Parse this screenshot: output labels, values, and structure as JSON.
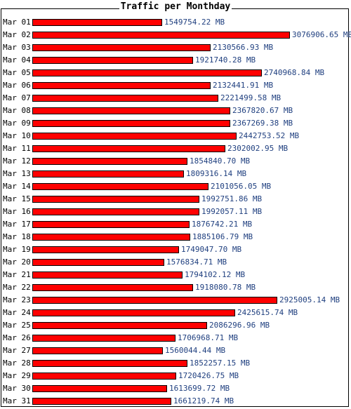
{
  "chart_data": {
    "type": "bar",
    "orientation": "horizontal",
    "title": "Traffic per Monthday",
    "unit": "MB",
    "bar_color": "#ff0000",
    "value_label_color": "#1f3f7f",
    "categories": [
      "Mar 01",
      "Mar 02",
      "Mar 03",
      "Mar 04",
      "Mar 05",
      "Mar 06",
      "Mar 07",
      "Mar 08",
      "Mar 09",
      "Mar 10",
      "Mar 11",
      "Mar 12",
      "Mar 13",
      "Mar 14",
      "Mar 15",
      "Mar 16",
      "Mar 17",
      "Mar 18",
      "Mar 19",
      "Mar 20",
      "Mar 21",
      "Mar 22",
      "Mar 23",
      "Mar 24",
      "Mar 25",
      "Mar 26",
      "Mar 27",
      "Mar 28",
      "Mar 29",
      "Mar 30",
      "Mar 31"
    ],
    "values": [
      1549754.22,
      3076906.65,
      2130566.93,
      1921740.28,
      2740968.84,
      2132441.91,
      2221499.58,
      2367820.67,
      2367269.38,
      2442753.52,
      2302002.95,
      1854840.7,
      1809316.14,
      2101056.05,
      1992751.86,
      1992057.11,
      1876742.21,
      1885106.79,
      1749047.7,
      1576834.71,
      1794102.12,
      1918080.78,
      2925005.14,
      2425615.74,
      2086296.96,
      1706968.71,
      1560044.44,
      1852257.15,
      1720426.75,
      1613699.72,
      1661219.74
    ],
    "value_labels": [
      "1549754.22 MB",
      "3076906.65 MB",
      "2130566.93 MB",
      "1921740.28 MB",
      "2740968.84 MB",
      "2132441.91 MB",
      "2221499.58 MB",
      "2367820.67 MB",
      "2367269.38 MB",
      "2442753.52 MB",
      "2302002.95 MB",
      "1854840.70 MB",
      "1809316.14 MB",
      "2101056.05 MB",
      "1992751.86 MB",
      "1992057.11 MB",
      "1876742.21 MB",
      "1885106.79 MB",
      "1749047.70 MB",
      "1576834.71 MB",
      "1794102.12 MB",
      "1918080.78 MB",
      "2925005.14 MB",
      "2425615.74 MB",
      "2086296.96 MB",
      "1706968.71 MB",
      "1560044.44 MB",
      "1852257.15 MB",
      "1720426.75 MB",
      "1613699.72 MB",
      "1661219.74 MB"
    ]
  }
}
